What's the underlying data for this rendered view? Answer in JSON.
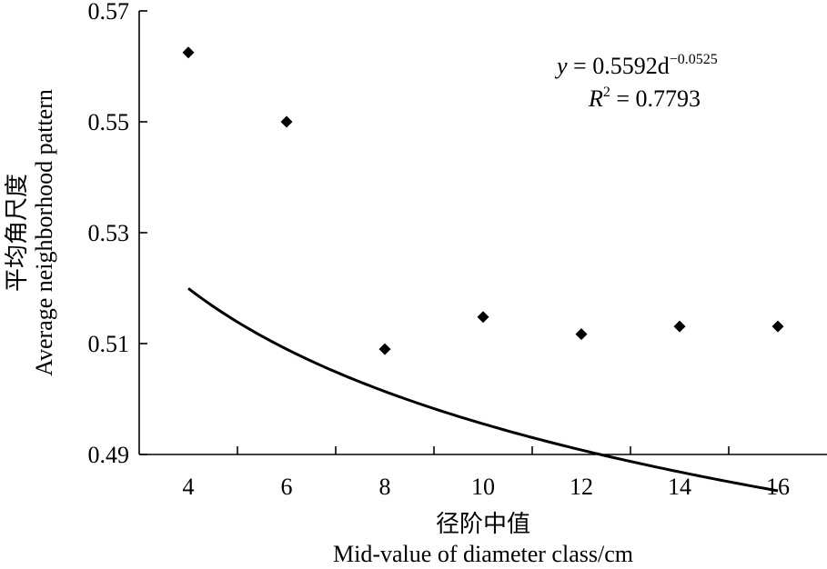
{
  "chart_data": {
    "type": "scatter",
    "x": [
      4,
      6,
      8,
      10,
      12,
      14,
      16
    ],
    "y": [
      0.5625,
      0.55,
      0.509,
      0.5148,
      0.5117,
      0.5131,
      0.5131
    ],
    "x_ticks": [
      "4",
      "6",
      "8",
      "10",
      "12",
      "14",
      "16"
    ],
    "y_ticks": [
      "0.49",
      "0.51",
      "0.53",
      "0.55",
      "0.57"
    ],
    "xlim": [
      3,
      17
    ],
    "ylim": [
      0.49,
      0.57
    ],
    "xlabel_cn": "径阶中值",
    "xlabel_en": "Mid-value of diameter class/cm",
    "ylabel_cn": "平均角尺度",
    "ylabel_en": "Average neighborhood pattern",
    "fit": {
      "type": "power",
      "a": 0.5592,
      "b": -0.0525,
      "r2": 0.7793,
      "x_start": 4,
      "x_end": 16
    },
    "annotation": {
      "y_var": "y",
      "equation_rhs": " = 0.5592d",
      "exponent": "−0.0525",
      "r_var": "R",
      "r_sup": "2",
      "r_rhs": " = 0.7793"
    },
    "grid": false,
    "legend": "none",
    "marker": "diamond",
    "marker_color": "#000000"
  }
}
